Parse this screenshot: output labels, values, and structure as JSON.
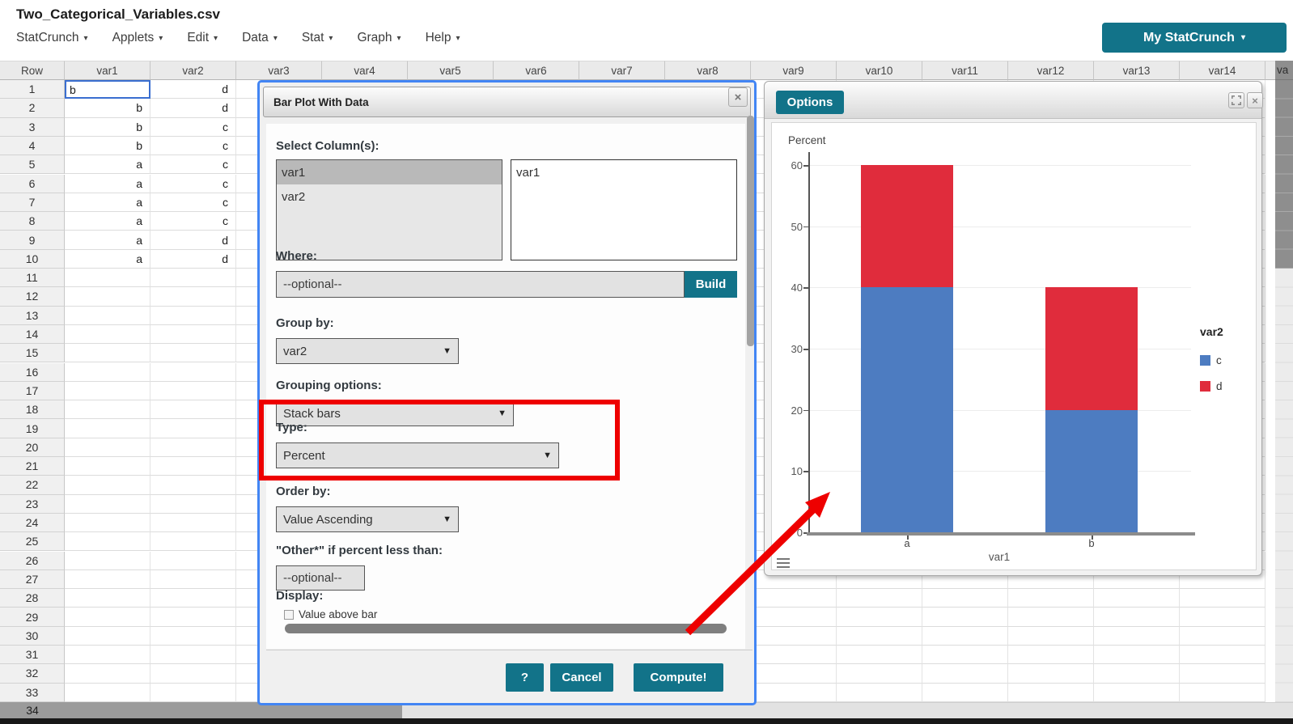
{
  "title": "Two_Categorical_Variables.csv",
  "menu": {
    "items": [
      "StatCrunch",
      "Applets",
      "Edit",
      "Data",
      "Stat",
      "Graph",
      "Help"
    ],
    "account_button": "My StatCrunch"
  },
  "spreadsheet": {
    "row_header": "Row",
    "columns": [
      "var1",
      "var2",
      "var3",
      "var4",
      "var5",
      "var6",
      "var7",
      "var8",
      "var9",
      "var10",
      "var11",
      "var12",
      "var13",
      "var14"
    ],
    "partial_column_label": "va",
    "rows": [
      {
        "var1": "b",
        "var2": "d"
      },
      {
        "var1": "b",
        "var2": "d"
      },
      {
        "var1": "b",
        "var2": "c"
      },
      {
        "var1": "b",
        "var2": "c"
      },
      {
        "var1": "a",
        "var2": "c"
      },
      {
        "var1": "a",
        "var2": "c"
      },
      {
        "var1": "a",
        "var2": "c"
      },
      {
        "var1": "a",
        "var2": "c"
      },
      {
        "var1": "a",
        "var2": "d"
      },
      {
        "var1": "a",
        "var2": "d"
      }
    ],
    "selected_cell": {
      "row": 1,
      "column": "var1",
      "value": "b"
    },
    "last_row_label": "34"
  },
  "dialog": {
    "title": "Bar Plot With Data",
    "close_label": "×",
    "select_columns_label": "Select Column(s):",
    "available_columns": [
      "var1",
      "var2"
    ],
    "selected_available": "var1",
    "chosen_columns": [
      "var1"
    ],
    "where_label": "Where:",
    "where_placeholder": "--optional--",
    "build_button": "Build",
    "group_by_label": "Group by:",
    "group_by_value": "var2",
    "grouping_options_label": "Grouping options:",
    "grouping_options_value": "Stack bars",
    "type_label": "Type:",
    "type_value": "Percent",
    "order_by_label": "Order by:",
    "order_by_value": "Value Ascending",
    "other_label": "\"Other*\" if percent less than:",
    "other_placeholder": "--optional--",
    "display_label": "Display:",
    "value_above_bar_label": "Value above bar",
    "help_button": "?",
    "cancel_button": "Cancel",
    "compute_button": "Compute!"
  },
  "options_window": {
    "button_label": "Options",
    "close_label": "×"
  },
  "chart_data": {
    "type": "bar",
    "stacked": true,
    "categories": [
      "a",
      "b"
    ],
    "series": [
      {
        "name": "c",
        "color": "#4d7cc1",
        "values": [
          40,
          20
        ]
      },
      {
        "name": "d",
        "color": "#e02c3c",
        "values": [
          20,
          20
        ]
      }
    ],
    "title": "",
    "xlabel": "var1",
    "ylabel": "Percent",
    "ylim": [
      0,
      60
    ],
    "yticks": [
      0,
      10,
      20,
      30,
      40,
      50,
      60
    ],
    "legend_title": "var2",
    "legend_position": "right",
    "grid": true
  },
  "annotations": {
    "highlight_color": "#ee0000",
    "arrow_color": "#ee0000"
  }
}
